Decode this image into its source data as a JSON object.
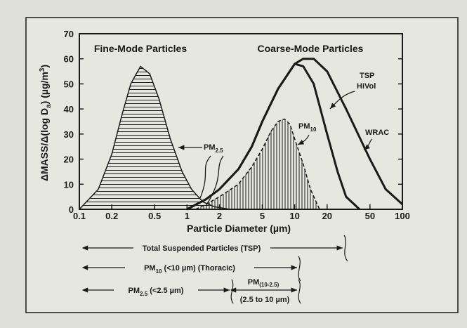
{
  "chart_data": {
    "type": "line",
    "title_fine": "Fine-Mode Particles",
    "title_coarse": "Coarse-Mode Particles",
    "x_label": "Particle Diameter (µm)",
    "y_label": {
      "base": "ΔMASS/Δ(log D",
      "sub": "a",
      "mid": ") (µg/m",
      "sup": "3",
      "end": ")"
    },
    "xscale": "log",
    "xlim": [
      0.1,
      100
    ],
    "xticks": [
      0.1,
      0.2,
      0.5,
      1,
      2,
      5,
      10,
      20,
      50,
      100
    ],
    "ylim": [
      0,
      70
    ],
    "yticks": [
      0,
      10,
      20,
      30,
      40,
      50,
      60,
      70
    ],
    "series": [
      {
        "x": [
          0.1,
          0.15,
          0.2,
          0.25,
          0.3,
          0.37,
          0.45,
          0.55,
          0.7,
          0.9,
          1.1,
          1.4,
          1.8,
          2.5
        ],
        "values": [
          0,
          8,
          22,
          38,
          50,
          57,
          54,
          44,
          28,
          15,
          8,
          3,
          1,
          0
        ],
        "color": "#1a1a1a",
        "hatch": "horizontal",
        "dashed": false,
        "width": 1.5
      },
      {
        "x": [
          1.2,
          1.5,
          2,
          3,
          4,
          5,
          6,
          7,
          8,
          9,
          10,
          12,
          14,
          17
        ],
        "values": [
          0,
          2,
          5,
          10,
          17,
          24,
          31,
          35,
          36,
          34,
          28,
          18,
          8,
          0
        ],
        "color": "#1a1a1a",
        "hatch": "vertical",
        "dashed": true,
        "width": 1.5
      },
      {
        "x": [
          1,
          1.5,
          2,
          3,
          4,
          5,
          7,
          10,
          12,
          15,
          20,
          30,
          50,
          70,
          100
        ],
        "values": [
          0,
          4,
          8,
          16,
          25,
          35,
          48,
          58,
          60,
          60,
          55,
          40,
          20,
          8,
          2
        ],
        "color": "#1a1a1a",
        "hatch": "none",
        "dashed": false,
        "width": 3
      },
      {
        "x": [
          1,
          1.5,
          2,
          3,
          4,
          5,
          7,
          10,
          12,
          15,
          20,
          25,
          30,
          40
        ],
        "values": [
          0,
          4,
          8,
          16,
          25,
          35,
          48,
          58,
          57,
          50,
          30,
          15,
          5,
          0
        ],
        "color": "#1a1a1a",
        "hatch": "none",
        "dashed": false,
        "width": 3
      }
    ],
    "annotations": {
      "pm25": {
        "base": "PM",
        "sub": "2.5"
      },
      "pm10": {
        "base": "PM",
        "sub": "10"
      },
      "tsp_hivol": [
        "TSP",
        "HiVol"
      ],
      "wrac": "WRAC"
    },
    "size_ranges": {
      "tsp": "Total Suspended Particles (TSP)",
      "thoracic": {
        "base": "PM",
        "sub": "10",
        "rest": " (<10 µm) (Thoracic)"
      },
      "fine": {
        "base": "PM",
        "sub": "2.5",
        "rest": " (<2.5 µm)"
      },
      "coarse": {
        "base": "PM",
        "sub": "(10-2.5)",
        "rest": "(2.5 to 10 µm)"
      }
    }
  }
}
